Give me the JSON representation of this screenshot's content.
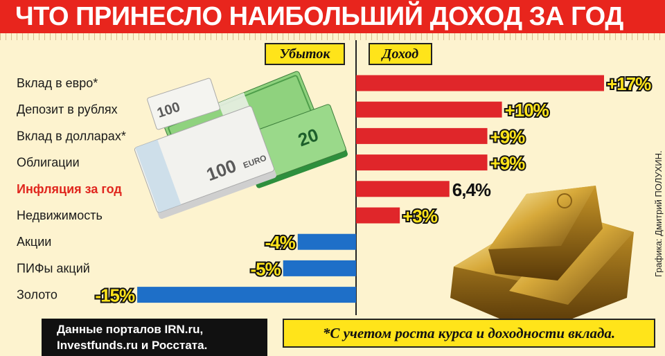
{
  "title": "ЧТО ПРИНЕСЛО НАИБОЛЬШИЙ ДОХОД ЗА ГОД",
  "legend": {
    "loss": "Убыток",
    "income": "Доход"
  },
  "colors": {
    "positive": "#e0262a",
    "negative": "#1e6fc8",
    "highlight": "#e0261e",
    "accent": "#ffe41a"
  },
  "chart_data": {
    "type": "bar",
    "orientation": "horizontal",
    "categories": [
      "Вклад в евро*",
      "Депозит в рублях",
      "Вклад в долларах*",
      "Облигации",
      "Инфляция за год",
      "Недвижимость",
      "Акции",
      "ПИФы акций",
      "Золото"
    ],
    "values": [
      17,
      10,
      9,
      9,
      6.4,
      3,
      -4,
      -5,
      -15
    ],
    "value_labels": [
      "+17%",
      "+10%",
      "+9%",
      "+9%",
      "6,4%",
      "+3%",
      "-4%",
      "-5%",
      "-15%"
    ],
    "highlight_category": "Инфляция за год",
    "unit": "%",
    "xlim": [
      -15,
      17
    ],
    "grid": false
  },
  "credit": "Графика: Дмитрий ПОЛУХИН.",
  "source": {
    "line1": "Данные порталов IRN.ru,",
    "line2": "Investfunds.ru и Росстата."
  },
  "footnote": "*С учетом роста курса и доходности вклада."
}
